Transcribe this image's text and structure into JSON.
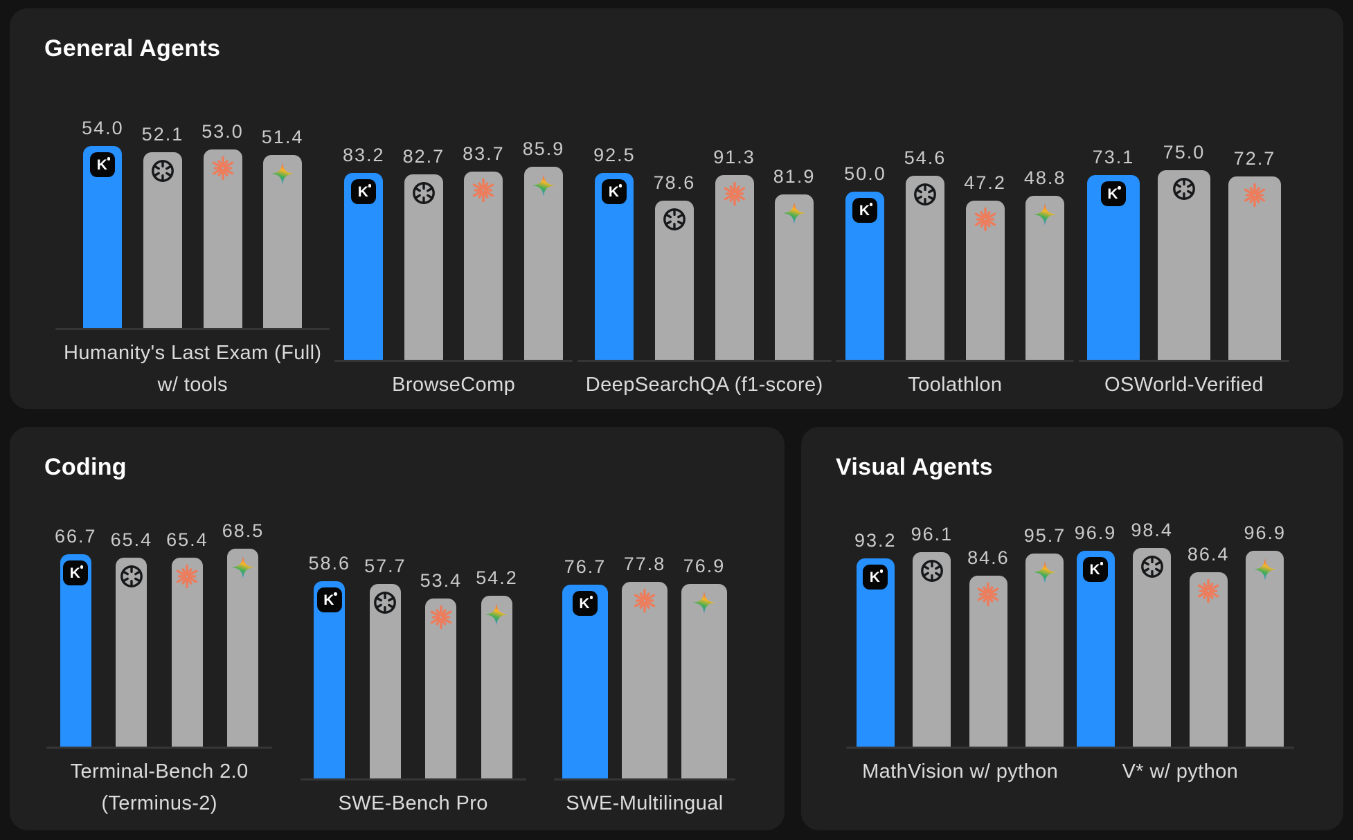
{
  "colors": {
    "page_bg": "#131313",
    "panel_bg": "#202020",
    "bar_highlight_blue": "#2590fe",
    "bar_default_gray": "#ababab",
    "value_label": "#cbcbcb",
    "group_label": "#dcdcdc",
    "panel_title": "#ffffff",
    "axis_line": "#363636",
    "kimi_badge_bg": "#060606",
    "openai_icon_color": "#17181a",
    "anthropic_icon_color": "#ec7d5d",
    "gemini_icon_colors": [
      "#f0473e",
      "#f8b62c",
      "#3fae58",
      "#3e87f5"
    ]
  },
  "models": [
    {
      "id": "kimi",
      "icon": "kimi-k-icon",
      "bar_style": "blue"
    },
    {
      "id": "openai",
      "icon": "openai-logo-icon",
      "bar_style": "gray"
    },
    {
      "id": "anthropic",
      "icon": "anthropic-starburst-icon",
      "bar_style": "gray"
    },
    {
      "id": "gemini",
      "icon": "gemini-star-icon",
      "bar_style": "gray"
    }
  ],
  "chart_data": {
    "type": "bar",
    "value_format": "one-decimal",
    "grid": false,
    "legend": "icons-on-bars",
    "panels": [
      {
        "title": "General Agents",
        "groups": [
          {
            "label_lines": [
              "Humanity's Last Exam (Full)",
              "w/ tools"
            ],
            "ylim": [
              0,
              60
            ],
            "bars": [
              {
                "model": "kimi",
                "value": 54.0
              },
              {
                "model": "openai",
                "value": 52.1
              },
              {
                "model": "anthropic",
                "value": 53.0
              },
              {
                "model": "gemini",
                "value": 51.4
              }
            ]
          },
          {
            "label_lines": [
              "BrowseComp"
            ],
            "ylim": [
              0,
              90
            ],
            "bars": [
              {
                "model": "kimi",
                "value": 83.2
              },
              {
                "model": "openai",
                "value": 82.7
              },
              {
                "model": "anthropic",
                "value": 83.7
              },
              {
                "model": "gemini",
                "value": 85.9
              }
            ]
          },
          {
            "label_lines": [
              "DeepSearchQA (f1-score)"
            ],
            "ylim": [
              0,
              100
            ],
            "bars": [
              {
                "model": "kimi",
                "value": 92.5
              },
              {
                "model": "openai",
                "value": 78.6
              },
              {
                "model": "anthropic",
                "value": 91.3
              },
              {
                "model": "gemini",
                "value": 81.9
              }
            ]
          },
          {
            "label_lines": [
              "Toolathlon"
            ],
            "ylim": [
              0,
              60
            ],
            "bars": [
              {
                "model": "kimi",
                "value": 50.0
              },
              {
                "model": "openai",
                "value": 54.6
              },
              {
                "model": "anthropic",
                "value": 47.2
              },
              {
                "model": "gemini",
                "value": 48.8
              }
            ]
          },
          {
            "label_lines": [
              "OSWorld-Verified"
            ],
            "ylim": [
              0,
              80
            ],
            "bars": [
              {
                "model": "kimi",
                "value": 73.1
              },
              {
                "model": "openai",
                "value": 75.0
              },
              {
                "model": "anthropic",
                "value": 72.7
              }
            ]
          }
        ]
      },
      {
        "title": "Coding",
        "groups": [
          {
            "label_lines": [
              "Terminal-Bench 2.0",
              "(Terminus-2)"
            ],
            "ylim": [
              0,
              70
            ],
            "bars": [
              {
                "model": "kimi",
                "value": 66.7
              },
              {
                "model": "openai",
                "value": 65.4
              },
              {
                "model": "anthropic",
                "value": 65.4
              },
              {
                "model": "gemini",
                "value": 68.5
              }
            ]
          },
          {
            "label_lines": [
              "SWE-Bench Pro"
            ],
            "ylim": [
              0,
              60
            ],
            "bars": [
              {
                "model": "kimi",
                "value": 58.6
              },
              {
                "model": "openai",
                "value": 57.7
              },
              {
                "model": "anthropic",
                "value": 53.4
              },
              {
                "model": "gemini",
                "value": 54.2
              }
            ]
          },
          {
            "label_lines": [
              "SWE-Multilingual"
            ],
            "ylim": [
              0,
              80
            ],
            "bars": [
              {
                "model": "kimi",
                "value": 76.7
              },
              {
                "model": "anthropic",
                "value": 77.8
              },
              {
                "model": "gemini",
                "value": 76.9
              }
            ]
          }
        ]
      },
      {
        "title": "Visual Agents",
        "groups": [
          {
            "label_lines": [
              "MathVision w/ python"
            ],
            "ylim": [
              0,
              100
            ],
            "bars": [
              {
                "model": "kimi",
                "value": 93.2
              },
              {
                "model": "openai",
                "value": 96.1
              },
              {
                "model": "anthropic",
                "value": 84.6
              },
              {
                "model": "gemini",
                "value": 95.7
              }
            ]
          },
          {
            "label_lines": [
              "V* w/ python"
            ],
            "ylim": [
              0,
              100
            ],
            "bars": [
              {
                "model": "kimi",
                "value": 96.9
              },
              {
                "model": "openai",
                "value": 98.4
              },
              {
                "model": "anthropic",
                "value": 86.4
              },
              {
                "model": "gemini",
                "value": 96.9
              }
            ]
          }
        ]
      }
    ]
  }
}
